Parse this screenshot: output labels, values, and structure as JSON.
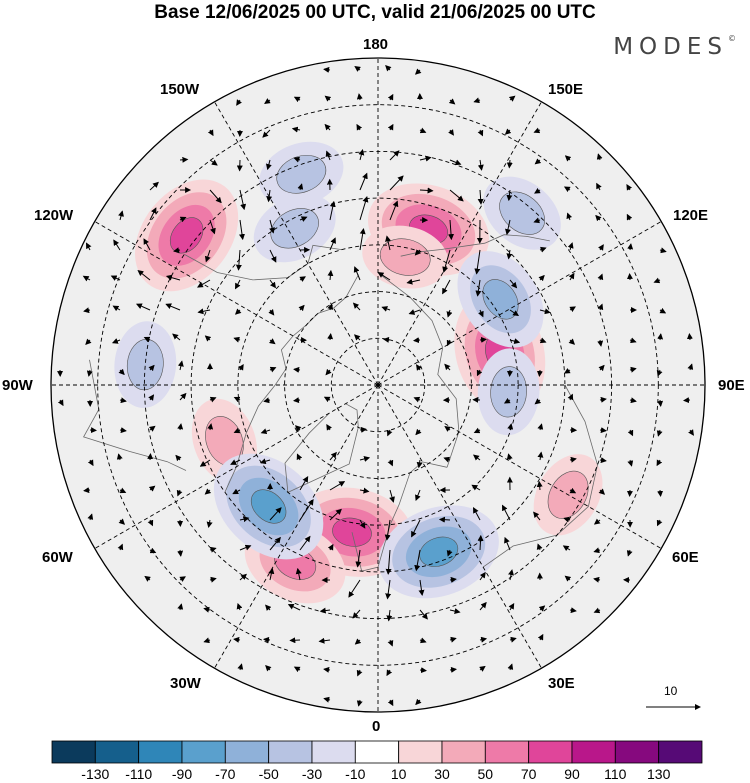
{
  "title": "Base 12/06/2025 00 UTC, valid 21/06/2025 00 UTC",
  "brand": "MODES",
  "brand_mark": "©",
  "longitude_labels": {
    "top": "180",
    "top_left": "150W",
    "top_right": "150E",
    "upper_left": "120W",
    "upper_right": "120E",
    "left": "90W",
    "right": "90E",
    "lower_left": "60W",
    "lower_right": "60E",
    "bottom_left": "30W",
    "bottom_right": "30E",
    "bottom": "0"
  },
  "reference_vector": {
    "label": "10"
  },
  "colorbar": {
    "ticks": [
      "-130",
      "-110",
      "-90",
      "-70",
      "-50",
      "-30",
      "-10",
      "10",
      "30",
      "50",
      "70",
      "90",
      "110",
      "130"
    ],
    "colors": [
      "#0b3a5c",
      "#155f8c",
      "#2f86b8",
      "#5aa0cd",
      "#8fb1d9",
      "#b7c3e2",
      "#dcdcef",
      "#ffffff",
      "#f8d6d8",
      "#f3aab9",
      "#ee7aa8",
      "#e0459a",
      "#b9178a",
      "#86097e",
      "#560a76"
    ]
  },
  "anomalies": [
    {
      "sign": "positive",
      "lon": 162,
      "lat": 55,
      "level": 70
    },
    {
      "sign": "positive",
      "lon": -128,
      "lat": 38,
      "level": 70
    },
    {
      "sign": "positive",
      "lon": 105,
      "lat": 63,
      "level": 70
    },
    {
      "sign": "positive",
      "lon": -10,
      "lat": 58,
      "level": 70
    },
    {
      "sign": "positive",
      "lon": -25,
      "lat": 48,
      "level": 50
    },
    {
      "sign": "positive",
      "lon": 60,
      "lat": 43,
      "level": 30
    },
    {
      "sign": "positive",
      "lon": 168,
      "lat": 62,
      "level": 30
    },
    {
      "sign": "positive",
      "lon": -70,
      "lat": 55,
      "level": 30
    },
    {
      "sign": "negative",
      "lon": 20,
      "lat": 52,
      "level": -70
    },
    {
      "sign": "negative",
      "lon": -42,
      "lat": 55,
      "level": -70
    },
    {
      "sign": "negative",
      "lon": 125,
      "lat": 58,
      "level": -50
    },
    {
      "sign": "negative",
      "lon": 140,
      "lat": 42,
      "level": -30
    },
    {
      "sign": "negative",
      "lon": -152,
      "lat": 52,
      "level": -30
    },
    {
      "sign": "negative",
      "lon": 87,
      "lat": 62,
      "level": -30
    },
    {
      "sign": "negative",
      "lon": -95,
      "lat": 40,
      "level": -30
    },
    {
      "sign": "negative",
      "lon": -160,
      "lat": 42,
      "level": -30
    }
  ]
}
